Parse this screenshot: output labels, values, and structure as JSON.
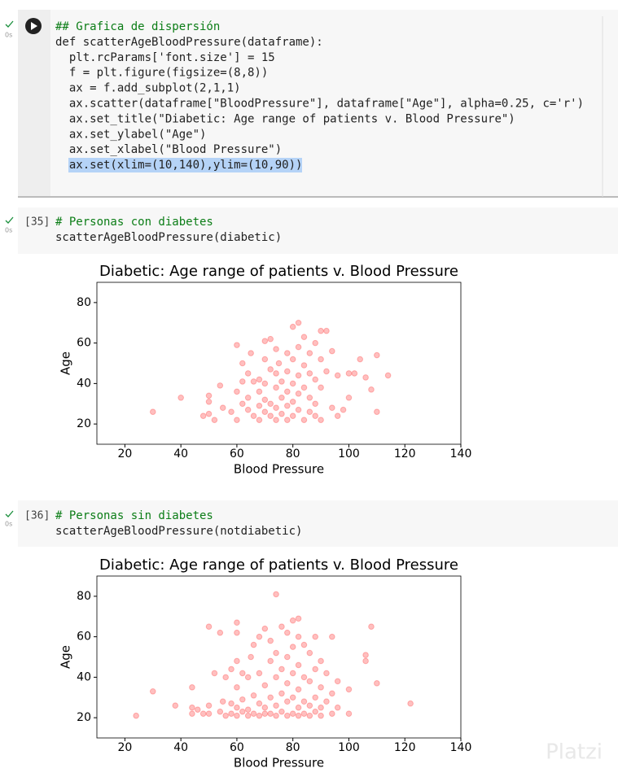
{
  "cells": [
    {
      "time": "0s",
      "lines": [
        "## Grafica de dispersión",
        "def scatterAgeBloodPressure(dataframe):",
        "  plt.rcParams['font.size'] = 15",
        "  f = plt.figure(figsize=(8,8))",
        "  ax = f.add_subplot(2,1,1)",
        "  ax.scatter(dataframe[\"BloodPressure\"], dataframe[\"Age\"], alpha=0.25, c='r')",
        "  ax.set_title(\"Diabetic: Age range of patients v. Blood Pressure\")",
        "  ax.set_ylabel(\"Age\")",
        "  ax.set_xlabel(\"Blood Pressure\")",
        "  ax.set(xlim=(10,140),ylim=(10,90))"
      ]
    },
    {
      "time": "0s",
      "count": "[35]",
      "lines": [
        "# Personas con diabetes",
        "scatterAgeBloodPressure(diabetic)"
      ]
    },
    {
      "time": "0s",
      "count": "[36]",
      "lines": [
        "# Personas sin diabetes",
        "scatterAgeBloodPressure(notdiabetic)"
      ]
    }
  ],
  "chart_data": [
    {
      "type": "scatter",
      "title": "Diabetic: Age range of patients v. Blood Pressure",
      "x_label": "Blood Pressure",
      "y_label": "Age",
      "color": "#ff0000",
      "alpha": 0.25,
      "xlim": [
        10,
        140
      ],
      "ylim": [
        10,
        90
      ],
      "xticks": [
        20,
        40,
        60,
        80,
        100,
        120,
        140
      ],
      "yticks": [
        20,
        40,
        60,
        80
      ],
      "x": [
        30,
        40,
        48,
        50,
        50,
        50,
        52,
        54,
        55,
        58,
        60,
        60,
        60,
        62,
        62,
        62,
        64,
        64,
        64,
        65,
        66,
        66,
        68,
        68,
        68,
        68,
        70,
        70,
        70,
        70,
        70,
        72,
        72,
        72,
        72,
        74,
        74,
        74,
        74,
        74,
        75,
        76,
        76,
        76,
        78,
        78,
        78,
        78,
        78,
        80,
        80,
        80,
        80,
        80,
        82,
        82,
        82,
        82,
        82,
        84,
        84,
        84,
        84,
        86,
        86,
        86,
        86,
        88,
        88,
        88,
        88,
        90,
        90,
        90,
        90,
        92,
        92,
        94,
        94,
        96,
        96,
        98,
        100,
        100,
        102,
        104,
        106,
        108,
        110,
        110,
        114
      ],
      "values": [
        26,
        33,
        24,
        34,
        31,
        25,
        22,
        39,
        28,
        26,
        59,
        36,
        22,
        30,
        41,
        50,
        27,
        45,
        33,
        55,
        41,
        24,
        42,
        29,
        36,
        22,
        61,
        52,
        40,
        32,
        26,
        62,
        47,
        30,
        24,
        57,
        45,
        38,
        28,
        22,
        50,
        33,
        41,
        25,
        55,
        46,
        36,
        29,
        22,
        68,
        52,
        40,
        31,
        24,
        70,
        58,
        44,
        35,
        27,
        63,
        49,
        38,
        22,
        55,
        45,
        33,
        26,
        60,
        42,
        30,
        24,
        66,
        52,
        38,
        22,
        66,
        46,
        56,
        28,
        44,
        24,
        27,
        45,
        33,
        45,
        52,
        43,
        37,
        54,
        26,
        44
      ]
    },
    {
      "type": "scatter",
      "title": "Diabetic: Age range of patients v. Blood Pressure",
      "x_label": "Blood Pressure",
      "y_label": "Age",
      "color": "#ff0000",
      "alpha": 0.25,
      "xlim": [
        10,
        140
      ],
      "ylim": [
        10,
        90
      ],
      "xticks": [
        20,
        40,
        60,
        80,
        100,
        120,
        140
      ],
      "yticks": [
        20,
        40,
        60,
        80
      ],
      "x": [
        24,
        30,
        38,
        44,
        44,
        44,
        46,
        48,
        50,
        50,
        50,
        52,
        54,
        54,
        55,
        56,
        56,
        58,
        58,
        58,
        60,
        60,
        60,
        60,
        60,
        60,
        62,
        62,
        62,
        64,
        64,
        64,
        65,
        66,
        66,
        66,
        68,
        68,
        68,
        68,
        70,
        70,
        70,
        70,
        72,
        72,
        72,
        72,
        74,
        74,
        74,
        74,
        74,
        76,
        76,
        76,
        76,
        78,
        78,
        78,
        78,
        78,
        80,
        80,
        80,
        80,
        80,
        82,
        82,
        82,
        82,
        82,
        82,
        84,
        84,
        84,
        84,
        86,
        86,
        86,
        86,
        88,
        88,
        88,
        88,
        90,
        90,
        90,
        90,
        92,
        92,
        94,
        94,
        94,
        96,
        96,
        100,
        100,
        106,
        106,
        108,
        110,
        122
      ],
      "values": [
        21,
        33,
        26,
        35,
        25,
        22,
        24,
        22,
        26,
        65,
        22,
        42,
        62,
        23,
        28,
        40,
        21,
        27,
        44,
        22,
        67,
        62,
        48,
        35,
        25,
        21,
        42,
        23,
        29,
        40,
        24,
        21,
        50,
        31,
        22,
        56,
        42,
        27,
        21,
        60,
        64,
        36,
        25,
        22,
        48,
        30,
        22,
        58,
        81,
        52,
        40,
        26,
        21,
        65,
        44,
        32,
        23,
        62,
        50,
        37,
        28,
        21,
        68,
        55,
        42,
        30,
        22,
        69,
        60,
        46,
        34,
        25,
        21,
        56,
        40,
        28,
        22,
        52,
        38,
        26,
        21,
        60,
        44,
        30,
        23,
        48,
        35,
        25,
        21,
        42,
        28,
        60,
        32,
        22,
        38,
        25,
        34,
        22,
        51,
        48,
        65,
        37,
        27
      ]
    }
  ],
  "watermark": "Platzi"
}
